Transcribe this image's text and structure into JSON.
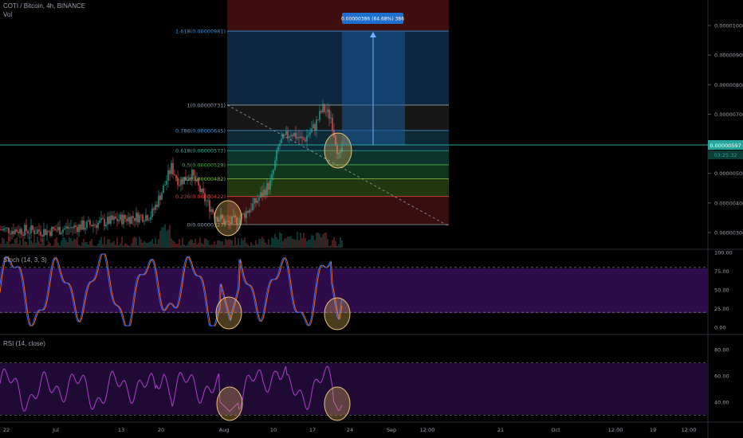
{
  "header": {
    "title": "COTI / Bitcoin, 4h, BINANCE",
    "volume_label": "Vol"
  },
  "price_axis": {
    "ticks": [
      "0.00001000",
      "0.00000900",
      "0.00000800",
      "0.00000700",
      "0.00000600",
      "0.00000500",
      "0.00000400",
      "0.00000300"
    ],
    "current_price": "0.00000597",
    "countdown": "03:25:32"
  },
  "time_axis": {
    "ticks": [
      "22",
      "Jul",
      "13",
      "20",
      "Aug",
      "10",
      "17",
      "24",
      "Sep",
      "12:00",
      "21",
      "Oct",
      "12:00",
      "19",
      "12:00"
    ]
  },
  "fib": {
    "levels": [
      {
        "ratio": 1.618,
        "label": "1.618(0.00000981)",
        "price": 9.81e-06,
        "color": "#3d8fd6"
      },
      {
        "ratio": 1,
        "label": "1(0.00000731)",
        "price": 7.31e-06,
        "color": "#9aa0ad"
      },
      {
        "ratio": 0.786,
        "label": "0.786(0.00000645)",
        "price": 6.45e-06,
        "color": "#4a9be0"
      },
      {
        "ratio": 0.618,
        "label": "0.618(0.00000577)",
        "price": 5.77e-06,
        "color": "#3aa898"
      },
      {
        "ratio": 0.5,
        "label": "0.5(0.00000529)",
        "price": 5.29e-06,
        "color": "#4caf50"
      },
      {
        "ratio": 0.382,
        "label": "0.382(0.00000482)",
        "price": 4.82e-06,
        "color": "#8bc34a"
      },
      {
        "ratio": 0.236,
        "label": "0.236(0.00000422)",
        "price": 4.22e-06,
        "color": "#e53935"
      },
      {
        "ratio": 0,
        "label": "0(0.00000327)",
        "price": 3.27e-06,
        "color": "#9aa0ad"
      }
    ]
  },
  "projection_label": "0.00000386 (64.68%) 386",
  "stoch": {
    "label": "Stoch (14, 3, 3)",
    "ticks": [
      "100.00",
      "75.00",
      "50.00",
      "25.00",
      "0.00"
    ]
  },
  "rsi": {
    "label": "RSI (14, close)",
    "ticks": [
      "80.00",
      "60.00",
      "40.00"
    ]
  },
  "colors": {
    "up": "#26a69a",
    "down": "#ef5350",
    "stoch_k": "#2962ff",
    "stoch_d": "#ff6d00",
    "rsi": "#b43ecf",
    "current_price_line": "#26a69a"
  },
  "chart_data": [
    {
      "type": "candlestick",
      "title": "COTI / Bitcoin, 4h, BINANCE",
      "ylim": [
        2.7e-06,
        1.08e-05
      ],
      "price_path": [
        [
          "22",
          3.1e-06
        ],
        [
          "Jul",
          3.2e-06
        ],
        [
          "13",
          3.7e-06
        ],
        [
          "20",
          5e-06
        ],
        [
          "20",
          4e-06
        ],
        [
          "Aug",
          3.27e-06
        ],
        [
          "Aug",
          4e-06
        ],
        [
          "10",
          5.4e-06
        ],
        [
          "10",
          6.4e-06
        ],
        [
          "17",
          7.31e-06
        ],
        [
          "24",
          5.27e-06
        ],
        [
          "24",
          5.97e-06
        ]
      ],
      "current_price": 5.97e-06
    },
    {
      "type": "line",
      "title": "Stoch (14, 3, 3)",
      "ylim": [
        0,
        100
      ],
      "levels": [
        80,
        20
      ]
    },
    {
      "type": "line",
      "title": "RSI (14, close)",
      "ylim": [
        25,
        90
      ],
      "levels": [
        70,
        30
      ]
    }
  ]
}
